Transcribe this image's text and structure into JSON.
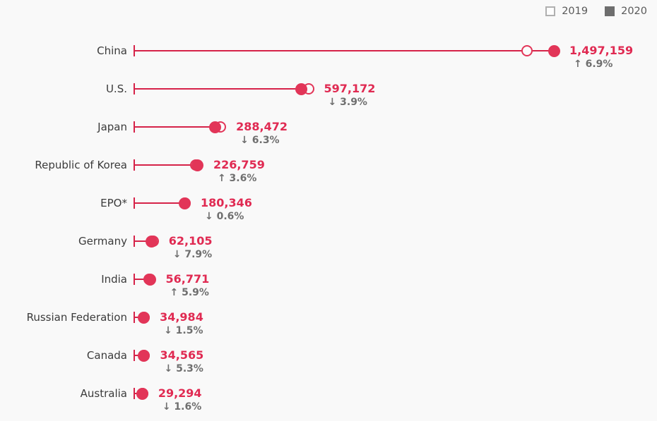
{
  "colors": {
    "accent_dot": "#e23558",
    "accent_line": "#d62349",
    "accent_value_text": "#e02a52",
    "change_text": "#6f6f6f",
    "country_text": "#3b3b3b",
    "legend_filled": "#6e6e6e",
    "background": "#f9f9f9"
  },
  "chart_data": {
    "type": "dumbbell",
    "title": "",
    "xlabel": "",
    "ylabel": "",
    "xlim": [
      0,
      1497159
    ],
    "grid": false,
    "legend_position": "top-right",
    "legend": [
      "2019",
      "2020"
    ],
    "categories": [
      "China",
      "U.S.",
      "Japan",
      "Republic of Korea",
      "EPO*",
      "Germany",
      "India",
      "Russian Federation",
      "Canada",
      "Australia"
    ],
    "series": [
      {
        "name": "2019",
        "note": "estimated from 2020 values and displayed % change",
        "values": [
          1400500,
          621400,
          307900,
          218900,
          181400,
          67400,
          53600,
          35500,
          36500,
          29800
        ]
      },
      {
        "name": "2020",
        "values": [
          1497159,
          597172,
          288472,
          226759,
          180346,
          62105,
          56771,
          34984,
          34565,
          29294
        ]
      }
    ],
    "value_labels": [
      "1,497,159",
      "597,172",
      "288,472",
      "226,759",
      "180,346",
      "62,105",
      "56,771",
      "34,984",
      "34,565",
      "29,294"
    ],
    "change_labels": [
      "↑ 6.9%",
      "↓ 3.9%",
      "↓ 6.3%",
      "↑ 3.6%",
      "↓ 0.6%",
      "↓ 7.9%",
      "↑ 5.9%",
      "↓ 1.5%",
      "↓ 5.3%",
      "↓ 1.6%"
    ]
  }
}
